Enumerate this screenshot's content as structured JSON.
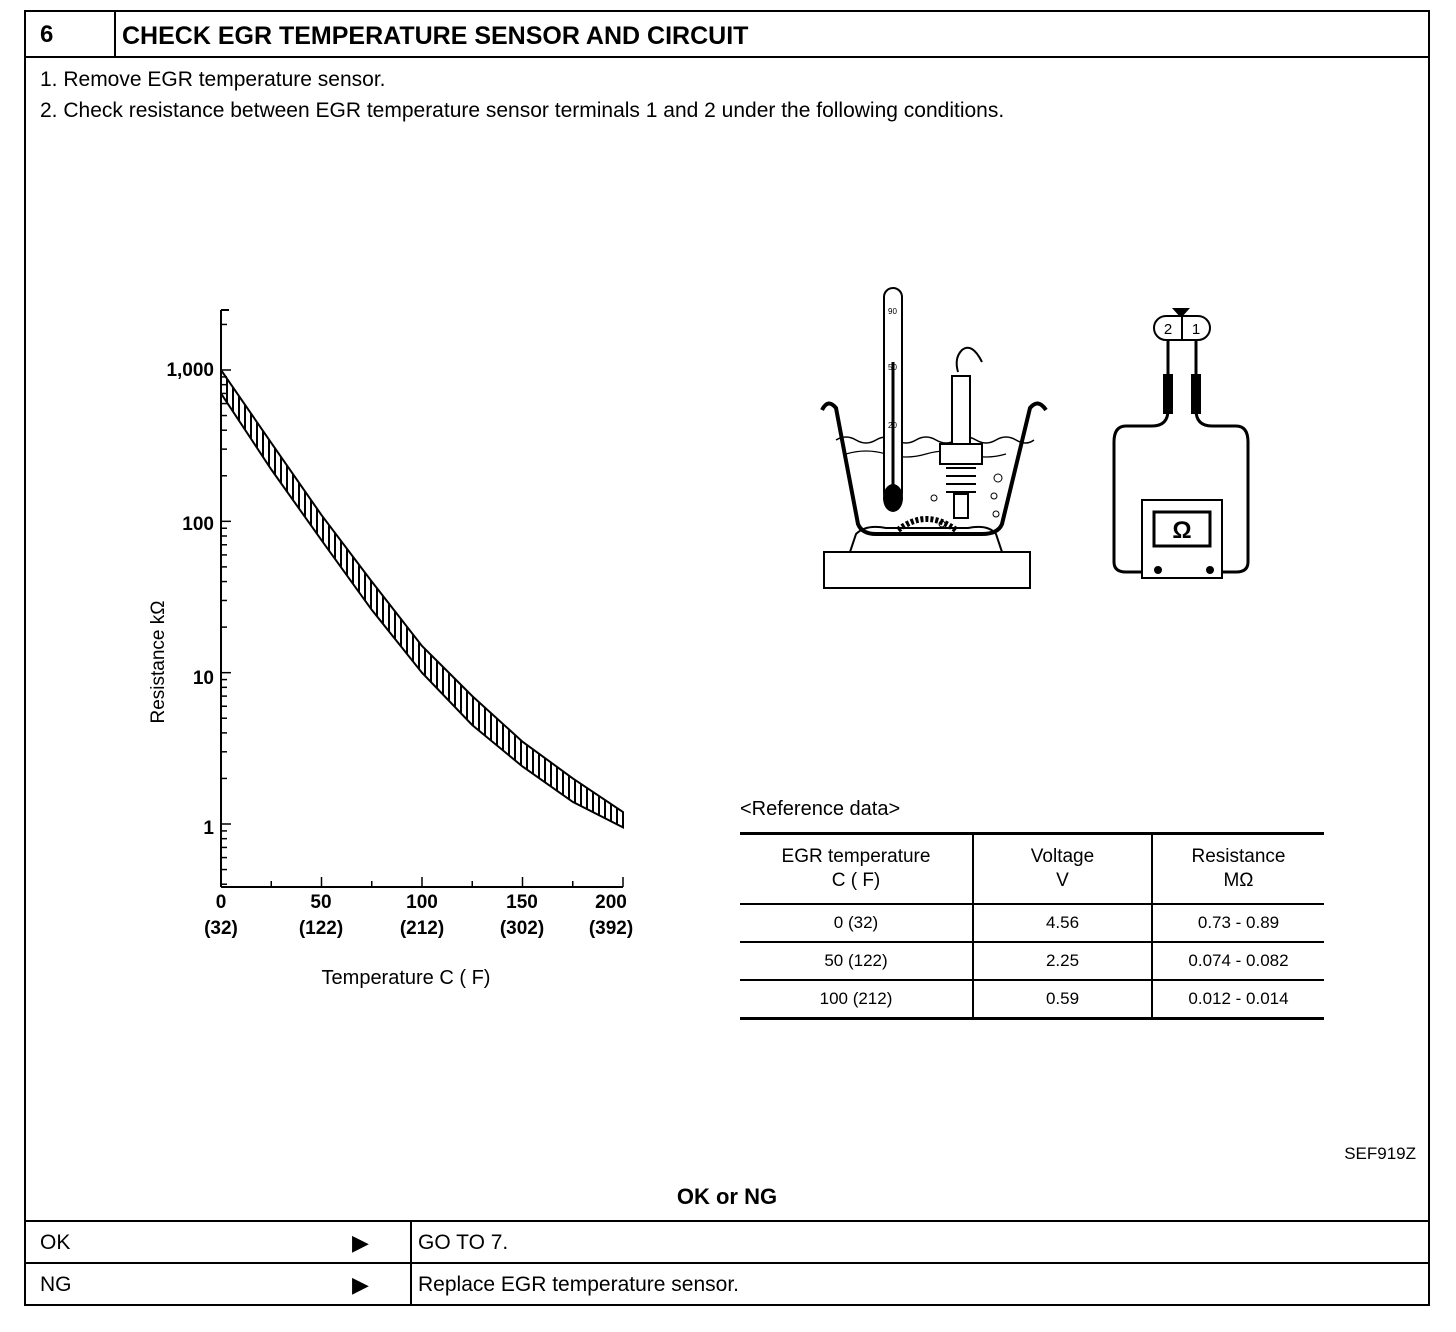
{
  "header": {
    "step_number": "6",
    "title": "CHECK EGR TEMPERATURE SENSOR AND CIRCUIT"
  },
  "instructions": [
    "1.  Remove EGR temperature sensor.",
    "2.  Check resistance between EGR temperature sensor terminals 1 and 2 under the following conditions."
  ],
  "chart": {
    "ylabel": "Resistance kΩ",
    "xlabel": "Temperature  C  ( F)",
    "y_ticks": [
      "1,000",
      "100",
      "10",
      "1"
    ],
    "x_ticks": [
      {
        "c": "0",
        "f": "(32)"
      },
      {
        "c": "50",
        "f": "(122)"
      },
      {
        "c": "100",
        "f": "(212)"
      },
      {
        "c": "150",
        "f": "(302)"
      },
      {
        "c": "200",
        "f": "(392)"
      }
    ]
  },
  "chart_data": {
    "type": "area",
    "xlabel": "Temperature  C  ( F)",
    "ylabel": "Resistance kΩ",
    "y_scale": "log",
    "xlim": [
      0,
      200
    ],
    "ylim": [
      0.4,
      2500
    ],
    "x": [
      0,
      25,
      50,
      75,
      100,
      125,
      150,
      175,
      200
    ],
    "series": [
      {
        "values_upper": [
          1000,
          330,
          110,
          40,
          15,
          7,
          3.5,
          2,
          1.2
        ]
      },
      {
        "values_lower": [
          700,
          220,
          75,
          26,
          10,
          4.5,
          2.4,
          1.4,
          0.95
        ]
      }
    ]
  },
  "diagram": {
    "connector_pins": [
      "2",
      "1"
    ],
    "meter_symbol": "Ω",
    "thermometer_marks": [
      "90",
      "50",
      "20"
    ]
  },
  "reference": {
    "title": "<Reference data>",
    "columns": [
      [
        "EGR temperature",
        "C ( F)"
      ],
      [
        "Voltage",
        "V"
      ],
      [
        "Resistance",
        "MΩ"
      ]
    ],
    "rows": [
      [
        "0 (32)",
        "4.56",
        "0.73 - 0.89"
      ],
      [
        "50 (122)",
        "2.25",
        "0.074 - 0.082"
      ],
      [
        "100 (212)",
        "0.59",
        "0.012 - 0.014"
      ]
    ]
  },
  "figure_code": "SEF919Z",
  "result": {
    "title": "OK or NG",
    "rows": [
      {
        "label": "OK",
        "arrow": "▶",
        "action": "GO TO 7."
      },
      {
        "label": "NG",
        "arrow": "▶",
        "action": "Replace EGR temperature sensor."
      }
    ]
  }
}
